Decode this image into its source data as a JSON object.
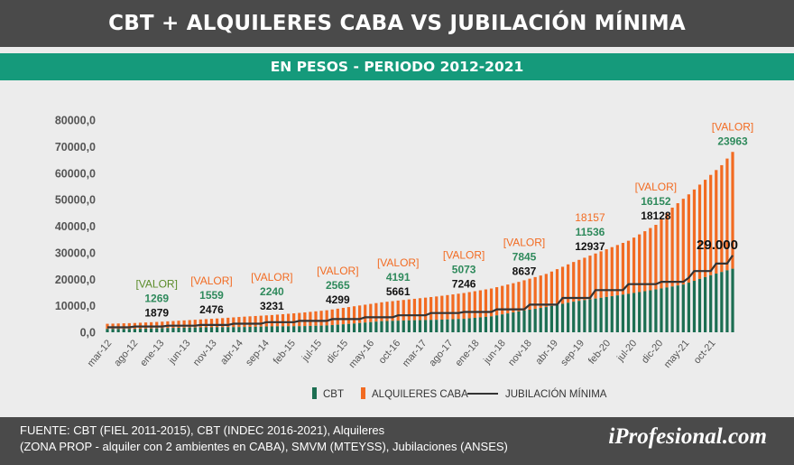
{
  "header": {
    "title": "CBT + ALQUILERES CABA VS JUBILACIÓN MÍNIMA",
    "subtitle": "EN PESOS - PERIODO 2012-2021"
  },
  "footer": {
    "source_line1": "FUENTE: CBT (FIEL 2011-2015), CBT (INDEC 2016-2021), Alquileres",
    "source_line2": "(ZONA PROP - alquiler con 2 ambientes en CABA), SMVM (MTEYSS), Jubilaciones (ANSES)",
    "brand": "iProfesional.com"
  },
  "colors": {
    "cbt": "#1c6e52",
    "alquileres": "#f26b22",
    "jubilacion": "#333333",
    "label_green": "#2f8a5c",
    "label_olive": "#5b8c2a"
  },
  "chart_data": {
    "type": "bar",
    "stacked": true,
    "x_tick_labels": [
      "mar-12",
      "ago-12",
      "ene-13",
      "jun-13",
      "nov-13",
      "abr-14",
      "sep-14",
      "feb-15",
      "jul-15",
      "dic-15",
      "may-16",
      "oct-16",
      "mar-17",
      "ago-17",
      "ene-18",
      "jun-18",
      "nov-18",
      "abr-19",
      "sep-19",
      "feb-20",
      "jul-20",
      "dic-20",
      "may-21",
      "oct-21"
    ],
    "y_ticks": [
      "0,0",
      "10000,0",
      "20000,0",
      "30000,0",
      "40000,0",
      "50000,0",
      "60000,0",
      "70000,0",
      "80000,0"
    ],
    "ylim": [
      0,
      80000
    ],
    "legend": [
      "CBT",
      "ALQUILERES CABA",
      "JUBILACIÓN MÍNIMA"
    ],
    "legend_position": "bottom",
    "series_anchors": {
      "cbt": [
        [
          0,
          1269
        ],
        [
          5,
          1269
        ],
        [
          10,
          1559
        ],
        [
          15,
          1800
        ],
        [
          20,
          1900
        ],
        [
          25,
          2000
        ],
        [
          30,
          2240
        ],
        [
          35,
          2300
        ],
        [
          40,
          2565
        ],
        [
          45,
          3300
        ],
        [
          50,
          4191
        ],
        [
          55,
          4500
        ],
        [
          60,
          4700
        ],
        [
          65,
          5073
        ],
        [
          70,
          6000
        ],
        [
          75,
          7845
        ],
        [
          80,
          9500
        ],
        [
          85,
          11536
        ],
        [
          90,
          13000
        ],
        [
          95,
          14500
        ],
        [
          100,
          16152
        ],
        [
          105,
          18000
        ],
        [
          110,
          21500
        ],
        [
          114,
          23963
        ]
      ],
      "alquileres_total": [
        [
          0,
          3200
        ],
        [
          5,
          3500
        ],
        [
          10,
          4000
        ],
        [
          15,
          4600
        ],
        [
          20,
          5200
        ],
        [
          25,
          5900
        ],
        [
          30,
          6500
        ],
        [
          35,
          7300
        ],
        [
          40,
          8300
        ],
        [
          45,
          9800
        ],
        [
          50,
          11300
        ],
        [
          55,
          12400
        ],
        [
          60,
          13500
        ],
        [
          65,
          14800
        ],
        [
          70,
          16500
        ],
        [
          75,
          19000
        ],
        [
          80,
          22000
        ],
        [
          85,
          26500
        ],
        [
          90,
          30500
        ],
        [
          95,
          34500
        ],
        [
          100,
          40500
        ],
        [
          103,
          47000
        ],
        [
          106,
          52000
        ],
        [
          109,
          57500
        ],
        [
          112,
          63000
        ],
        [
          114,
          68000
        ]
      ],
      "jubilacion": [
        [
          0,
          1879
        ],
        [
          4,
          1879
        ],
        [
          5,
          2165
        ],
        [
          10,
          2165
        ],
        [
          11,
          2476
        ],
        [
          16,
          2476
        ],
        [
          17,
          2757
        ],
        [
          22,
          2757
        ],
        [
          23,
          3231
        ],
        [
          28,
          3231
        ],
        [
          29,
          3821
        ],
        [
          34,
          3821
        ],
        [
          35,
          4299
        ],
        [
          40,
          4299
        ],
        [
          41,
          4959
        ],
        [
          46,
          4959
        ],
        [
          47,
          5661
        ],
        [
          52,
          5661
        ],
        [
          53,
          6394
        ],
        [
          58,
          6394
        ],
        [
          59,
          7246
        ],
        [
          64,
          7246
        ],
        [
          65,
          7660
        ],
        [
          70,
          7660
        ],
        [
          71,
          8637
        ],
        [
          76,
          8637
        ],
        [
          77,
          10410
        ],
        [
          82,
          10410
        ],
        [
          83,
          12937
        ],
        [
          88,
          12937
        ],
        [
          89,
          15891
        ],
        [
          94,
          15891
        ],
        [
          95,
          18128
        ],
        [
          100,
          18128
        ],
        [
          101,
          19035
        ],
        [
          105,
          19035
        ],
        [
          106,
          20571
        ],
        [
          107,
          23065
        ],
        [
          110,
          23065
        ],
        [
          111,
          25922
        ],
        [
          113,
          25922
        ],
        [
          114,
          29000
        ]
      ]
    },
    "annotations": [
      {
        "top": "[VALOR]",
        "green": "1269",
        "black": "1879",
        "index": 9,
        "top_color": "olive"
      },
      {
        "top": "[VALOR]",
        "green": "1559",
        "black": "2476",
        "index": 19,
        "top_color": "orange"
      },
      {
        "top": "[VALOR]",
        "green": "2240",
        "black": "3231",
        "index": 30,
        "top_color": "orange"
      },
      {
        "top": "[VALOR]",
        "green": "2565",
        "black": "4299",
        "index": 42,
        "top_color": "orange"
      },
      {
        "top": "[VALOR]",
        "green": "4191",
        "black": "5661",
        "index": 53,
        "top_color": "orange"
      },
      {
        "top": "[VALOR]",
        "green": "5073",
        "black": "7246",
        "index": 65,
        "top_color": "orange"
      },
      {
        "top": "[VALOR]",
        "green": "7845",
        "black": "8637",
        "index": 76,
        "top_color": "orange"
      },
      {
        "top": "18157",
        "green": "11536",
        "black": "12937",
        "index": 88,
        "top_color": "orange"
      },
      {
        "top": "[VALOR]",
        "green": "16152",
        "black": "18128",
        "index": 100,
        "top_color": "orange"
      },
      {
        "top": "[VALOR]",
        "green": "23963",
        "black": "",
        "index": 114,
        "top_color": "orange"
      }
    ],
    "callout": "29.000"
  }
}
